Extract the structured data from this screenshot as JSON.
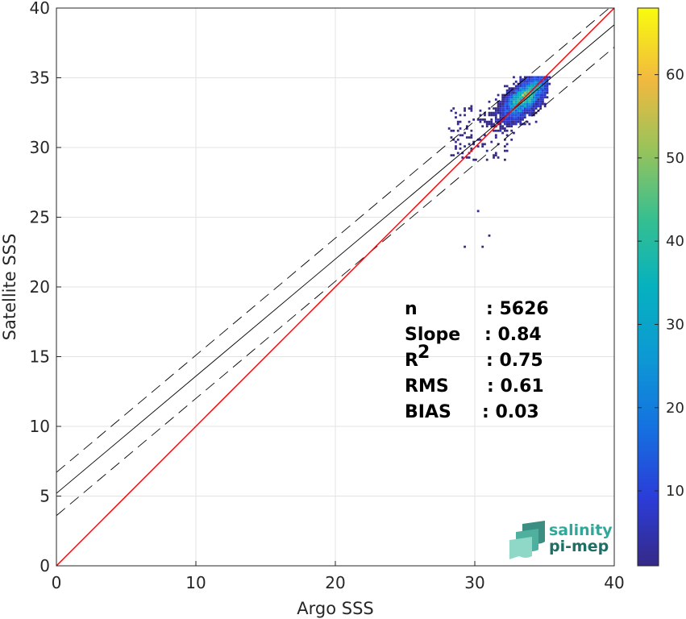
{
  "chart_data": {
    "type": "heatmap",
    "xlabel": "Argo SSS",
    "ylabel": "Satellite SSS",
    "xlim": [
      0,
      40
    ],
    "ylim": [
      0,
      40
    ],
    "xticks": [
      "0",
      "10",
      "20",
      "30",
      "40"
    ],
    "yticks": [
      "0",
      "5",
      "10",
      "15",
      "20",
      "25",
      "30",
      "35",
      "40"
    ],
    "grid": true,
    "colorbar": {
      "range": [
        1,
        68
      ],
      "ticks": [
        "10",
        "20",
        "30",
        "40",
        "50",
        "60"
      ],
      "colormap": "parula"
    },
    "lines": {
      "identity": {
        "slope": 1.0,
        "intercept": 0.0,
        "color": "#ff0000"
      },
      "regression": {
        "slope": 0.84,
        "intercept": 5.2,
        "color": "#000000"
      },
      "regression_upper": {
        "slope": 0.84,
        "intercept": 6.7,
        "style": "dashed"
      },
      "regression_lower": {
        "slope": 0.84,
        "intercept": 3.6,
        "style": "dashed"
      }
    },
    "density_peak": {
      "x": 33.6,
      "y": 33.6,
      "count": 68
    },
    "outliers": [
      {
        "x": 29.2,
        "y": 22.9
      },
      {
        "x": 30.5,
        "y": 22.8
      },
      {
        "x": 31.0,
        "y": 23.6
      },
      {
        "x": 30.2,
        "y": 25.5
      }
    ],
    "stats": [
      {
        "label": "n",
        "value": ": 5626"
      },
      {
        "label": "Slope",
        "value": ": 0.84"
      },
      {
        "label": "R",
        "sup": "2",
        "value": ": 0.75"
      },
      {
        "label": "RMS",
        "value": ": 0.61"
      },
      {
        "label": "BIAS",
        "value": ": 0.03"
      }
    ]
  },
  "logo": {
    "line1": "salinity",
    "line2": "pi-mep"
  }
}
